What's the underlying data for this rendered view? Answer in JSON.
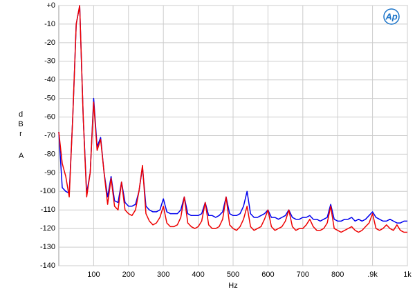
{
  "chart_data": {
    "type": "line",
    "x_label": "Hz",
    "y_label": "dBr",
    "y_unit": "A",
    "logo": "Ap",
    "xlim": [
      0,
      1000
    ],
    "ylim": [
      -140,
      0
    ],
    "xticks": [
      100,
      200,
      300,
      400,
      500,
      600,
      700,
      800,
      {
        "value": 900,
        "label": ".9k"
      },
      {
        "value": 1000,
        "label": "1k"
      }
    ],
    "yticks": [
      {
        "value": 0,
        "label": "+0"
      },
      -10,
      -20,
      -30,
      -40,
      -50,
      -60,
      -70,
      -80,
      -90,
      -100,
      -110,
      -120,
      -130,
      -140
    ],
    "grid": true,
    "x": [
      0,
      10,
      20,
      30,
      40,
      50,
      60,
      70,
      80,
      90,
      100,
      110,
      120,
      130,
      140,
      150,
      160,
      170,
      180,
      190,
      200,
      210,
      220,
      230,
      240,
      250,
      260,
      270,
      280,
      290,
      300,
      310,
      320,
      330,
      340,
      350,
      360,
      370,
      380,
      390,
      400,
      410,
      420,
      430,
      440,
      450,
      460,
      470,
      480,
      490,
      500,
      510,
      520,
      530,
      540,
      550,
      560,
      570,
      580,
      590,
      600,
      610,
      620,
      630,
      640,
      650,
      660,
      670,
      680,
      690,
      700,
      710,
      720,
      730,
      740,
      750,
      760,
      770,
      780,
      790,
      800,
      810,
      820,
      830,
      840,
      850,
      860,
      870,
      880,
      890,
      900,
      910,
      920,
      930,
      940,
      950,
      960,
      970,
      980,
      990,
      1000
    ],
    "series": [
      {
        "color": "#0000ee",
        "values": [
          -68,
          -98,
          -100,
          -101,
          -60,
          -10,
          0,
          -60,
          -101,
          -90,
          -50,
          -76,
          -71,
          -90,
          -103,
          -92,
          -105,
          -106,
          -95,
          -106,
          -108,
          -108,
          -107,
          -100,
          -87,
          -108,
          -110,
          -111,
          -111,
          -110,
          -104,
          -111,
          -112,
          -112,
          -112,
          -110,
          -103,
          -112,
          -113,
          -113,
          -113,
          -112,
          -106,
          -113,
          -113,
          -114,
          -113,
          -111,
          -103,
          -112,
          -113,
          -113,
          -112,
          -108,
          -100,
          -112,
          -114,
          -114,
          -113,
          -112,
          -110,
          -114,
          -114,
          -115,
          -114,
          -113,
          -110,
          -114,
          -115,
          -115,
          -114,
          -114,
          -113,
          -115,
          -115,
          -116,
          -115,
          -114,
          -107,
          -115,
          -116,
          -116,
          -115,
          -115,
          -114,
          -116,
          -115,
          -116,
          -115,
          -113,
          -111,
          -114,
          -115,
          -116,
          -116,
          -115,
          -116,
          -117,
          -117,
          -116,
          -116
        ]
      },
      {
        "color": "#ee0000",
        "values": [
          -68,
          -85,
          -92,
          -103,
          -60,
          -10,
          0,
          -60,
          -103,
          -90,
          -52,
          -78,
          -72,
          -90,
          -107,
          -93,
          -108,
          -110,
          -95,
          -110,
          -112,
          -113,
          -110,
          -100,
          -86,
          -112,
          -116,
          -118,
          -117,
          -114,
          -108,
          -117,
          -119,
          -119,
          -118,
          -114,
          -103,
          -117,
          -119,
          -120,
          -119,
          -116,
          -106,
          -118,
          -120,
          -120,
          -119,
          -115,
          -103,
          -118,
          -120,
          -121,
          -119,
          -115,
          -108,
          -119,
          -121,
          -120,
          -119,
          -115,
          -110,
          -119,
          -121,
          -120,
          -119,
          -116,
          -110,
          -119,
          -121,
          -120,
          -120,
          -118,
          -115,
          -119,
          -121,
          -121,
          -120,
          -117,
          -108,
          -120,
          -121,
          -122,
          -121,
          -120,
          -119,
          -121,
          -122,
          -121,
          -119,
          -117,
          -112,
          -120,
          -121,
          -120,
          -118,
          -120,
          -121,
          -118,
          -121,
          -122,
          -122
        ]
      }
    ]
  }
}
